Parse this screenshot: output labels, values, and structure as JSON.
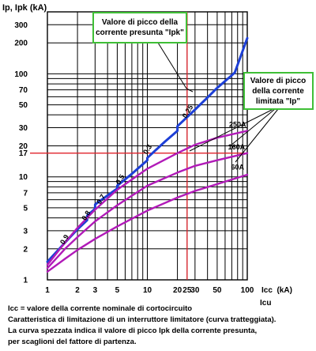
{
  "chart_data": {
    "type": "line",
    "y_axis_label": "Ip, Ipk (kA)",
    "x_axis_label": "Icc  (kA)",
    "x_axis_label_secondary": "Icu",
    "x_scale": "log",
    "y_scale": "log",
    "xlim": [
      1,
      100
    ],
    "ylim": [
      1,
      400
    ],
    "x_tick_labels": [
      {
        "value": 1,
        "label": "1"
      },
      {
        "value": 2,
        "label": "2"
      },
      {
        "value": 3,
        "label": "3"
      },
      {
        "value": 5,
        "label": "5"
      },
      {
        "value": 10,
        "label": "10"
      },
      {
        "value": 20,
        "label": "20"
      },
      {
        "value": 25,
        "label": "25"
      },
      {
        "value": 30,
        "label": "30"
      },
      {
        "value": 50,
        "label": "50"
      },
      {
        "value": 100,
        "label": "100"
      }
    ],
    "y_tick_labels": [
      {
        "value": 1,
        "label": "1"
      },
      {
        "value": 2,
        "label": "2"
      },
      {
        "value": 3,
        "label": "3"
      },
      {
        "value": 5,
        "label": "5"
      },
      {
        "value": 7,
        "label": "7"
      },
      {
        "value": 10,
        "label": "10"
      },
      {
        "value": 17,
        "label": "17"
      },
      {
        "value": 20,
        "label": "20"
      },
      {
        "value": 30,
        "label": "30"
      },
      {
        "value": 50,
        "label": "50"
      },
      {
        "value": 70,
        "label": "70"
      },
      {
        "value": 100,
        "label": "100"
      },
      {
        "value": 200,
        "label": "200"
      },
      {
        "value": 300,
        "label": "300"
      }
    ],
    "x_gridlines": [
      1,
      2,
      3,
      4,
      5,
      6,
      7,
      8,
      9,
      10,
      20,
      25,
      30,
      40,
      50,
      60,
      70,
      80,
      90,
      100
    ],
    "y_gridlines": [
      1,
      2,
      3,
      4,
      5,
      6,
      7,
      8,
      9,
      10,
      20,
      30,
      40,
      50,
      60,
      70,
      80,
      90,
      100,
      200,
      300
    ],
    "series": [
      {
        "name": "Valore di picco della corrente presunta \"Ipk\"",
        "color": "#1d3fd6",
        "points": [
          [
            1,
            1.5
          ],
          [
            1.5,
            2.3
          ],
          [
            2,
            3.1
          ],
          [
            2.5,
            3.8
          ],
          [
            2.5,
            4.2
          ],
          [
            3,
            4.9
          ],
          [
            3,
            5.4
          ],
          [
            4,
            6.6
          ],
          [
            5,
            7.7
          ],
          [
            5,
            8.2
          ],
          [
            7,
            10.7
          ],
          [
            10,
            14.5
          ],
          [
            10,
            15.3
          ],
          [
            15,
            22
          ],
          [
            20,
            28
          ],
          [
            20,
            31
          ],
          [
            30,
            45
          ],
          [
            40,
            59
          ],
          [
            50,
            73
          ],
          [
            70,
            97
          ],
          [
            75,
            103
          ],
          [
            100,
            222
          ]
        ],
        "annotations": [
          {
            "label": "0.9",
            "x": 1.55,
            "y": 2.4
          },
          {
            "label": "0.8",
            "x": 2.55,
            "y": 4.1
          },
          {
            "label": "0.7",
            "x": 3.6,
            "y": 5.9
          },
          {
            "label": "0.5",
            "x": 5.6,
            "y": 9.2
          },
          {
            "label": "0.3",
            "x": 10.5,
            "y": 18
          },
          {
            "label": "0.25",
            "x": 26.5,
            "y": 42
          }
        ]
      },
      {
        "name": "250A",
        "color": "#b11ab8",
        "points": [
          [
            1,
            1.4
          ],
          [
            1.5,
            2.3
          ],
          [
            2,
            3.2
          ],
          [
            3,
            4.8
          ],
          [
            5,
            7.5
          ],
          [
            10,
            12
          ],
          [
            20,
            17
          ],
          [
            30,
            20.5
          ],
          [
            50,
            24
          ],
          [
            100,
            28
          ]
        ]
      },
      {
        "name": "160A",
        "color": "#b11ab8",
        "points": [
          [
            1,
            1.3
          ],
          [
            1.5,
            2.0
          ],
          [
            2,
            2.6
          ],
          [
            3,
            3.7
          ],
          [
            5,
            5.3
          ],
          [
            10,
            8.2
          ],
          [
            20,
            11
          ],
          [
            30,
            12.8
          ],
          [
            50,
            14.5
          ],
          [
            100,
            17
          ]
        ]
      },
      {
        "name": "60A",
        "color": "#b11ab8",
        "points": [
          [
            1,
            1.2
          ],
          [
            1.5,
            1.6
          ],
          [
            2,
            1.95
          ],
          [
            3,
            2.5
          ],
          [
            5,
            3.3
          ],
          [
            10,
            4.7
          ],
          [
            20,
            6.3
          ],
          [
            30,
            7.3
          ],
          [
            50,
            8.5
          ],
          [
            100,
            10.5
          ]
        ]
      }
    ],
    "reference_lines": [
      {
        "axis": "x",
        "value": 25,
        "color": "#e0232b"
      },
      {
        "axis": "y",
        "value": 17,
        "color": "#e0232b"
      }
    ],
    "callouts": [
      {
        "text_lines": [
          "Valore di picco della",
          "corrente presunta \"Ipk\""
        ],
        "border_color": "#3fbf36"
      },
      {
        "text_lines": [
          "Valore di picco",
          "della corrente",
          "limitata \"Ip\""
        ],
        "border_color": "#3fbf36"
      }
    ],
    "notes": [
      "Icc = valore della corrente nominale di cortocircuito",
      "Caratteristica di limitazione di un interruttore limitatore (curva tratteggiata).",
      "La curva spezzata indica il valore di picco Ipk della corrente presunta,",
      "per scaglioni del fattore di partenza."
    ]
  }
}
